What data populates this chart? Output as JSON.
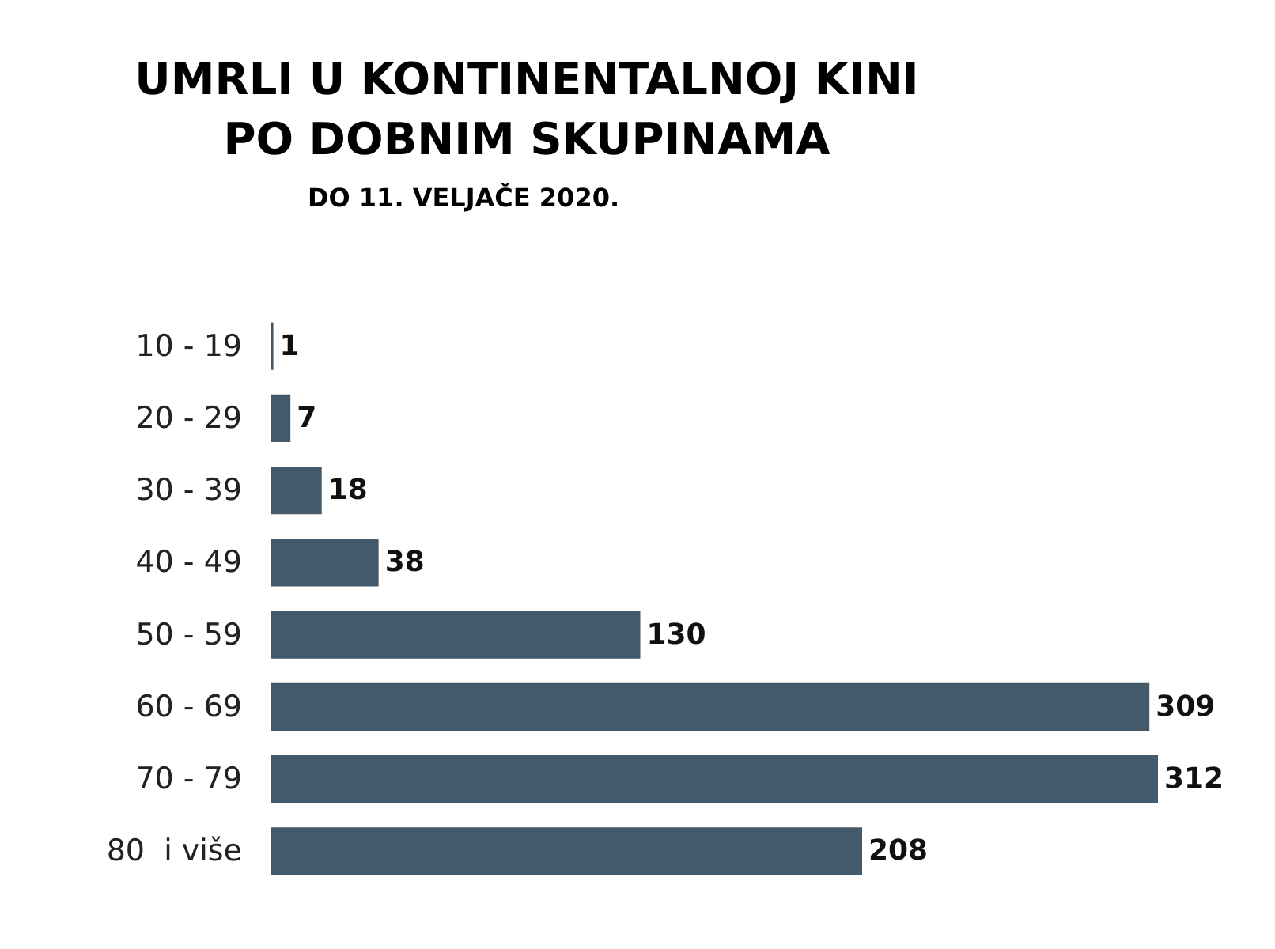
{
  "chart_data": {
    "type": "bar",
    "orientation": "horizontal",
    "title": "UMRLI U KONTINENTALNOJ KINI\nPO DOBNIM SKUPINAMA",
    "subtitle": "DO 11. VELJAČE 2020.",
    "categories": [
      "10 - 19",
      "20 - 29",
      "30 - 39",
      "40 - 49",
      "50 - 59",
      "60 - 69",
      "70 - 79",
      "80  i više"
    ],
    "values": [
      1,
      7,
      18,
      38,
      130,
      309,
      312,
      208
    ],
    "color": "#44596a",
    "data_labels": true
  }
}
